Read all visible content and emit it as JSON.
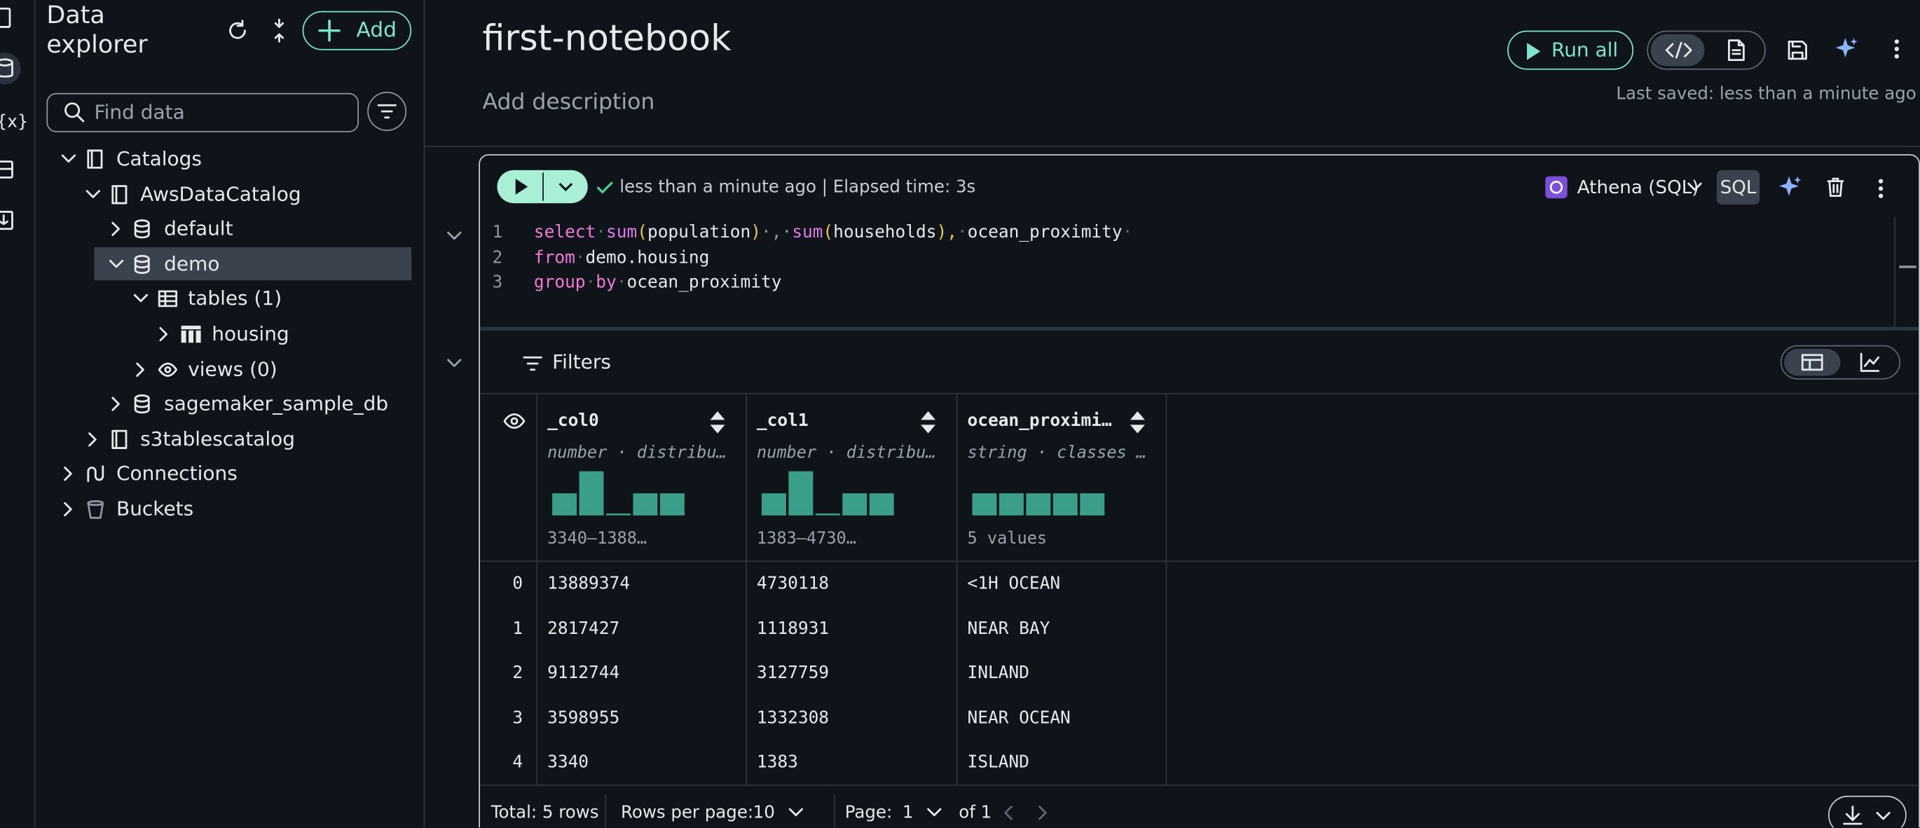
{
  "sidebar": {
    "title": "Data explorer",
    "add_button": "Add",
    "search_placeholder": "Find data",
    "tree": [
      {
        "label": "Catalogs",
        "icon": "book",
        "expanded": true,
        "children": [
          {
            "label": "AwsDataCatalog",
            "icon": "book",
            "expanded": true,
            "children": [
              {
                "label": "default",
                "icon": "database",
                "expanded": false
              },
              {
                "label": "demo",
                "icon": "database",
                "expanded": true,
                "selected": true,
                "children": [
                  {
                    "label": "tables (1)",
                    "icon": "table-group",
                    "expanded": true,
                    "children": [
                      {
                        "label": "housing",
                        "icon": "table",
                        "expanded": false
                      }
                    ]
                  },
                  {
                    "label": "views (0)",
                    "icon": "eye",
                    "expanded": false
                  }
                ]
              },
              {
                "label": "sagemaker_sample_db",
                "icon": "database",
                "expanded": false
              }
            ]
          },
          {
            "label": "s3tablescatalog",
            "icon": "book",
            "expanded": false
          }
        ]
      },
      {
        "label": "Connections",
        "icon": "link",
        "expanded": false
      },
      {
        "label": "Buckets",
        "icon": "bucket",
        "expanded": false
      }
    ]
  },
  "notebook": {
    "title": "first-notebook",
    "description": "Add description",
    "run_all": "Run all",
    "last_saved": "Last saved: less than a minute ago"
  },
  "cell": {
    "status": "less than a minute ago | Elapsed time: 3s",
    "engine": "Athena (SQL)",
    "language": "SQL",
    "line_numbers": [
      1,
      2,
      3
    ],
    "code": [
      [
        {
          "text": "select",
          "color": "#f27ad6"
        },
        {
          "text": "·",
          "color": "#5d6672"
        },
        {
          "text": "sum",
          "color": "#e07ae8"
        },
        {
          "text": "(",
          "color": "#e8c75a"
        },
        {
          "text": "population",
          "color": "#e6e9ec"
        },
        {
          "text": ")",
          "color": "#e8c75a"
        },
        {
          "text": "·,·",
          "color": "#8d96a1"
        },
        {
          "text": "sum",
          "color": "#e07ae8"
        },
        {
          "text": "(",
          "color": "#e8c75a"
        },
        {
          "text": "households",
          "color": "#e6e9ec"
        },
        {
          "text": "),",
          "color": "#e8c75a"
        },
        {
          "text": "·",
          "color": "#5d6672"
        },
        {
          "text": "ocean_proximity",
          "color": "#e6e9ec"
        },
        {
          "text": "·",
          "color": "#5d6672"
        }
      ],
      [
        {
          "text": "from",
          "color": "#f27ad6"
        },
        {
          "text": "·",
          "color": "#5d6672"
        },
        {
          "text": "demo.housing",
          "color": "#e6e9ec"
        }
      ],
      [
        {
          "text": "group",
          "color": "#f27ad6"
        },
        {
          "text": "·",
          "color": "#5d6672"
        },
        {
          "text": "by",
          "color": "#f27ad6"
        },
        {
          "text": "·",
          "color": "#5d6672"
        },
        {
          "text": "ocean_proximity",
          "color": "#e6e9ec"
        }
      ]
    ]
  },
  "results": {
    "filters": "Filters",
    "bar_color": "#3a9e88",
    "columns": [
      {
        "name": "_col0",
        "subtitle": "number · distribu…",
        "histogram": [
          1,
          2,
          0,
          1,
          1
        ],
        "range": "3340–1388…"
      },
      {
        "name": "_col1",
        "subtitle": "number · distribu…",
        "histogram": [
          1,
          2,
          0,
          1,
          1
        ],
        "range": "1383–4730…"
      },
      {
        "name": "ocean_proximi…",
        "subtitle": "string · classes …",
        "histogram": [
          1,
          1,
          1,
          1,
          1
        ],
        "range": "5 values"
      }
    ],
    "row_labels": [
      0,
      1,
      2,
      3,
      4
    ],
    "rows": [
      [
        13889374,
        4730118,
        "<1H OCEAN"
      ],
      [
        2817427,
        1118931,
        "NEAR BAY"
      ],
      [
        9112744,
        3127759,
        "INLAND"
      ],
      [
        3598955,
        1332308,
        "NEAR OCEAN"
      ],
      [
        3340,
        1383,
        "ISLAND"
      ]
    ],
    "footer": {
      "total": "Total: 5 rows",
      "rows_per_page_label": "Rows per page:",
      "rows_per_page": 10,
      "page_label": "Page:",
      "page": 1,
      "page_count": "of 1"
    }
  }
}
